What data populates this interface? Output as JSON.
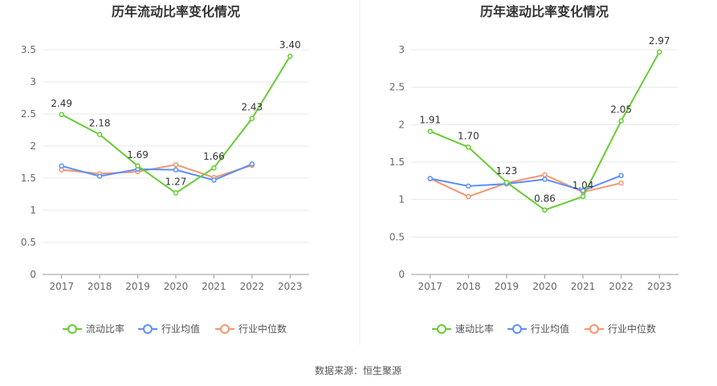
{
  "source": "数据来源：恒生聚源",
  "chart_data": [
    {
      "type": "line",
      "title": "历年流动比率变化情况",
      "categories": [
        "2017",
        "2018",
        "2019",
        "2020",
        "2021",
        "2022",
        "2023"
      ],
      "ylim": [
        0,
        3.5
      ],
      "yticks": [
        "0",
        "0.5",
        "1",
        "1.5",
        "2",
        "2.5",
        "3",
        "3.5"
      ],
      "grid": true,
      "legend_position": "bottom",
      "series": [
        {
          "name": "流动比率",
          "color": "#66cc33",
          "values": [
            2.49,
            2.18,
            1.69,
            1.27,
            1.66,
            2.43,
            3.4
          ],
          "labels": [
            "2.49",
            "2.18",
            "1.69",
            "1.27",
            "1.66",
            "2.43",
            "3.40"
          ]
        },
        {
          "name": "行业均值",
          "color": "#5b8ff9",
          "values": [
            1.69,
            1.53,
            1.64,
            1.63,
            1.47,
            1.72,
            null
          ]
        },
        {
          "name": "行业中位数",
          "color": "#f4956f",
          "values": [
            1.63,
            1.57,
            1.6,
            1.71,
            1.51,
            1.7,
            null
          ]
        }
      ]
    },
    {
      "type": "line",
      "title": "历年速动比率变化情况",
      "categories": [
        "2017",
        "2018",
        "2019",
        "2020",
        "2021",
        "2022",
        "2023"
      ],
      "ylim": [
        0,
        3
      ],
      "yticks": [
        "0",
        "0.5",
        "1",
        "1.5",
        "2",
        "2.5",
        "3"
      ],
      "grid": true,
      "legend_position": "bottom",
      "series": [
        {
          "name": "速动比率",
          "color": "#66cc33",
          "values": [
            1.91,
            1.7,
            1.23,
            0.86,
            1.04,
            2.05,
            2.97
          ],
          "labels": [
            "1.91",
            "1.70",
            "1.23",
            "0.86",
            "1.04",
            "2.05",
            "2.97"
          ]
        },
        {
          "name": "行业均值",
          "color": "#5b8ff9",
          "values": [
            1.28,
            1.18,
            1.21,
            1.27,
            1.12,
            1.32,
            null
          ]
        },
        {
          "name": "行业中位数",
          "color": "#f4956f",
          "values": [
            1.28,
            1.04,
            1.22,
            1.33,
            1.1,
            1.22,
            null
          ]
        }
      ]
    }
  ]
}
